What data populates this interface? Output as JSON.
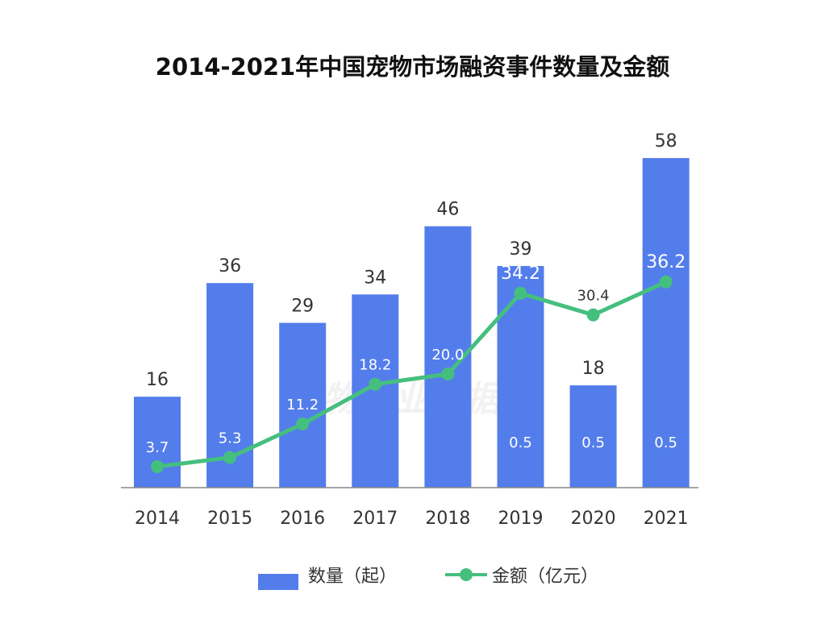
{
  "chart_data": {
    "type": "bar",
    "title": "2014-2021年中国宠物市场融资事件数量及金额",
    "categories": [
      "2014",
      "2015",
      "2016",
      "2017",
      "2018",
      "2019",
      "2020",
      "2021"
    ],
    "series": [
      {
        "name": "数量（起）",
        "type": "bar",
        "color": "#537DEB",
        "values": [
          16,
          36,
          29,
          34,
          46,
          39,
          18,
          58
        ]
      },
      {
        "name": "金额（亿元）",
        "type": "line",
        "color": "#45BF7E",
        "values": [
          3.7,
          5.3,
          11.2,
          18.2,
          20.0,
          34.2,
          30.4,
          36.2
        ]
      }
    ],
    "bar_inner_labels": [
      "",
      "",
      "",
      "",
      "",
      "0.5",
      "0.5",
      "0.5"
    ],
    "ylim": [
      0,
      60
    ],
    "grid": false,
    "legend_position": "bottom",
    "watermark": "宠物行业数据库"
  }
}
